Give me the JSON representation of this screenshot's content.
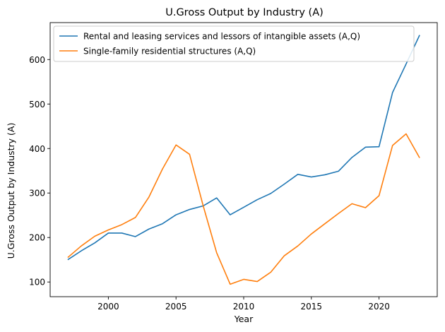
{
  "chart_data": {
    "type": "line",
    "title": "U.Gross Output by Industry (A)",
    "xlabel": "Year",
    "ylabel": "U.Gross Output by Industry (A)",
    "xlim": [
      1995.7,
      2024.3
    ],
    "ylim": [
      67,
      683
    ],
    "xticks": [
      2000,
      2005,
      2010,
      2015,
      2020
    ],
    "yticks": [
      100,
      200,
      300,
      400,
      500,
      600
    ],
    "grid": false,
    "legend_position": "top-left",
    "x": [
      1997,
      1998,
      1999,
      2000,
      2001,
      2002,
      2003,
      2004,
      2005,
      2006,
      2007,
      2008,
      2009,
      2010,
      2011,
      2012,
      2013,
      2014,
      2015,
      2016,
      2017,
      2018,
      2019,
      2020,
      2021,
      2022,
      2023
    ],
    "series": [
      {
        "name": "Rental and leasing services and lessors of intangible assets (A,Q)",
        "color": "#1f77b4",
        "values": [
          150,
          170,
          188,
          210,
          210,
          202,
          219,
          231,
          251,
          263,
          271,
          289,
          251,
          268,
          285,
          299,
          320,
          342,
          336,
          341,
          349,
          380,
          403,
          404,
          526,
          590,
          655
        ]
      },
      {
        "name": "Single-family residential structures (A,Q)",
        "color": "#ff7f0e",
        "values": [
          155,
          181,
          203,
          217,
          229,
          245,
          291,
          354,
          408,
          387,
          272,
          166,
          95,
          106,
          101,
          122,
          159,
          181,
          208,
          231,
          254,
          276,
          267,
          294,
          407,
          433,
          379
        ]
      }
    ]
  }
}
